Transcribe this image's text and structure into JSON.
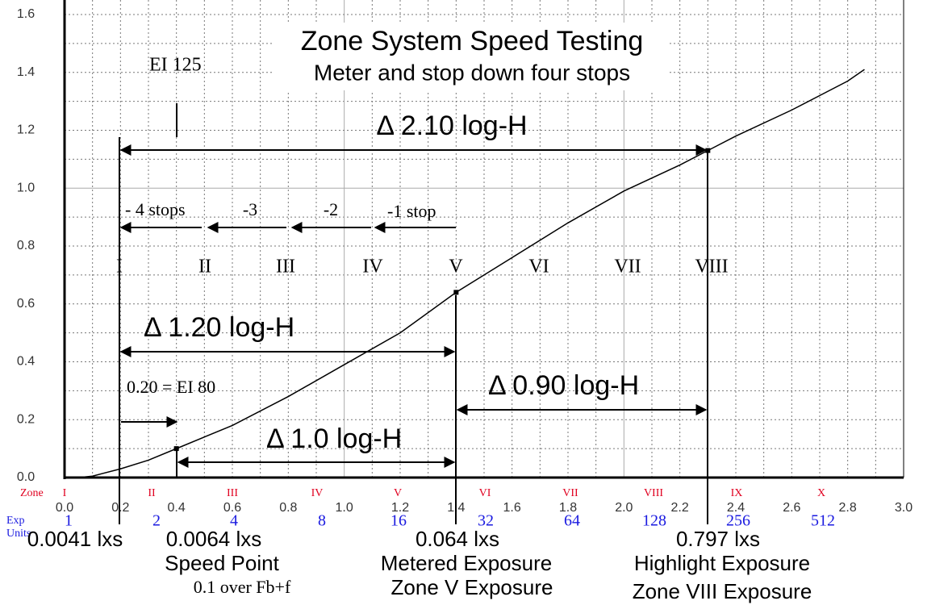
{
  "chart_data": {
    "type": "line",
    "title": "Zone System Speed Testing",
    "subtitle": "Meter and stop down four stops",
    "x": [
      0.05,
      0.1,
      0.2,
      0.3,
      0.4,
      0.6,
      0.8,
      1.0,
      1.2,
      1.4,
      1.6,
      1.8,
      2.0,
      2.2,
      2.3,
      2.4,
      2.6,
      2.8,
      2.86
    ],
    "series": [
      {
        "color": "#000000",
        "values": [
          0.0,
          0.005,
          0.03,
          0.06,
          0.1,
          0.18,
          0.28,
          0.39,
          0.5,
          0.64,
          0.76,
          0.88,
          0.99,
          1.08,
          1.13,
          1.18,
          1.27,
          1.37,
          1.41
        ]
      }
    ],
    "marked_points": {
      "x": [
        0.4,
        1.4,
        2.3
      ],
      "y": [
        0.1,
        0.64,
        1.13
      ]
    },
    "xlim": [
      0,
      3
    ],
    "ylim": [
      0,
      1.6
    ],
    "xticks": [
      {
        "value": 0,
        "label": "0.0"
      },
      0.2,
      0.4,
      0.6,
      0.8,
      {
        "value": 1,
        "label": "1.0"
      },
      1.2,
      1.4,
      1.6,
      1.8,
      {
        "value": 2,
        "label": "2.0"
      },
      2.2,
      2.4,
      2.6,
      2.8,
      {
        "value": 3,
        "label": "3.0"
      }
    ],
    "yticks": [
      {
        "value": 0,
        "label": "0.0"
      },
      0.2,
      0.4,
      0.6,
      0.8,
      {
        "value": 1,
        "label": "1.0"
      },
      1.2,
      1.4,
      1.6
    ],
    "minor_xgrid": [
      0.1,
      0.3,
      0.5,
      0.7,
      0.9,
      1.1,
      1.3,
      1.5,
      1.7,
      1.9,
      2.1,
      2.3,
      2.5,
      2.7,
      2.9
    ],
    "minor_ygrid": [
      0.1,
      0.3,
      0.5,
      0.7,
      0.9,
      1.1,
      1.3,
      1.5
    ],
    "grid": true,
    "annotations": [
      "EI 125",
      "Δ 2.10 log-H",
      "- 4 stops",
      "-3",
      "-2",
      "-1 stop",
      "Δ 1.20 log-H",
      "0.20 = EI 80",
      "Δ 0.90 log-H",
      "Δ 1.0 log-H"
    ],
    "plot_zones": [
      "I",
      "II",
      "III",
      "IV",
      "V",
      "VI",
      "VII",
      "VIII"
    ],
    "zone_label": "Zone",
    "zones": [
      "I",
      "II",
      "III",
      "IV",
      "V",
      "VI",
      "VII",
      "VIII",
      "IX",
      "X"
    ],
    "exposure_label": [
      "Exp",
      "Units"
    ],
    "exposure_units": [
      1,
      2,
      4,
      8,
      16,
      32,
      64,
      128,
      256,
      512
    ],
    "lux": [
      "0.0041 lxs",
      "0.0064 lxs",
      "0.064 lxs",
      "0.797 lxs"
    ],
    "captions": [
      "Speed Point",
      "0.1 over Fb+f",
      "Metered Exposure",
      "Zone V Exposure",
      "Highlight Exposure",
      "Zone VIII Exposure"
    ]
  }
}
